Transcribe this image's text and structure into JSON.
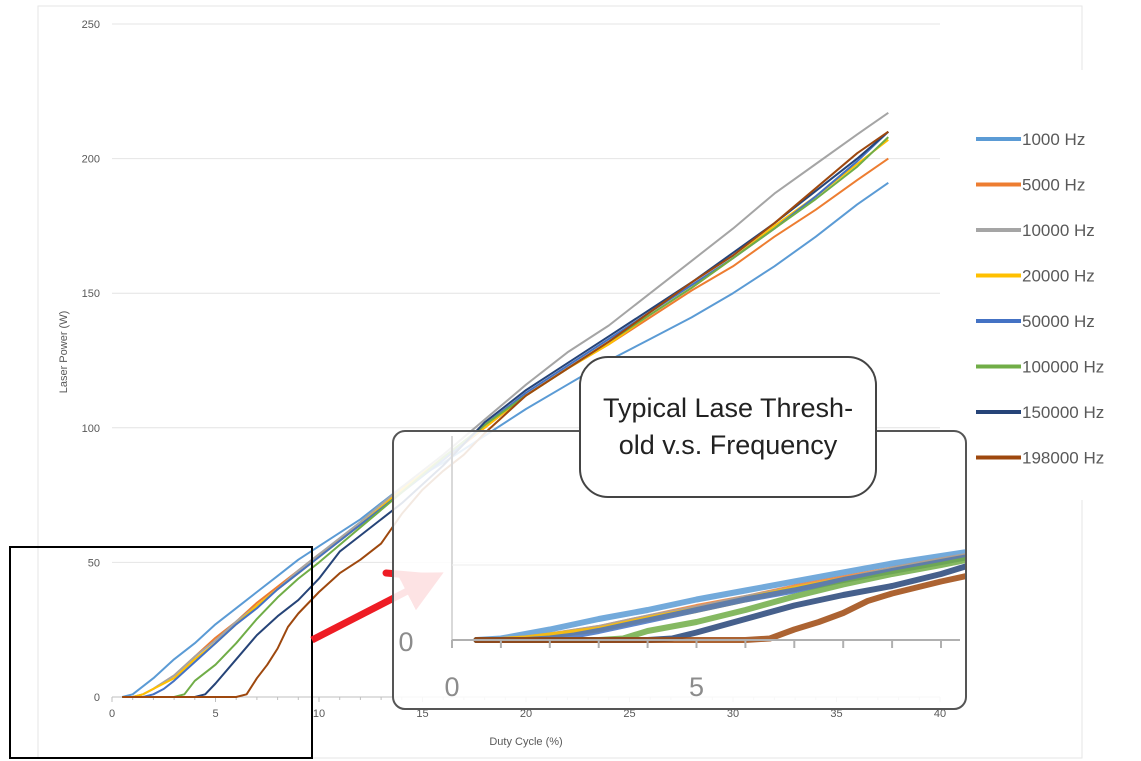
{
  "chart_data": {
    "type": "line",
    "xlabel": "Duty Cycle (%)",
    "ylabel": "Laser Power (W)",
    "xlim": [
      0,
      40
    ],
    "ylim": [
      0,
      250
    ],
    "x_ticks": [
      "0",
      "5",
      "10",
      "15",
      "20",
      "25",
      "30",
      "35",
      "40"
    ],
    "y_ticks": [
      "0",
      "50",
      "100",
      "150",
      "200",
      "250"
    ],
    "grid": "horizontal",
    "legend": "right",
    "series": [
      {
        "name": "1000 Hz",
        "color": "#5B9BD5",
        "points": [
          [
            0.5,
            0
          ],
          [
            1,
            1
          ],
          [
            2,
            7
          ],
          [
            3,
            14
          ],
          [
            4,
            20
          ],
          [
            5,
            27
          ],
          [
            6,
            33
          ],
          [
            7,
            39
          ],
          [
            8,
            45
          ],
          [
            9,
            51
          ],
          [
            10,
            56
          ],
          [
            12,
            66
          ],
          [
            14,
            78
          ],
          [
            16,
            87
          ],
          [
            18,
            97
          ],
          [
            20,
            107
          ],
          [
            22,
            116
          ],
          [
            24,
            125
          ],
          [
            26,
            133
          ],
          [
            28,
            141
          ],
          [
            30,
            150
          ],
          [
            32,
            160
          ],
          [
            34,
            171
          ],
          [
            36,
            183
          ],
          [
            37.5,
            191
          ]
        ]
      },
      {
        "name": "5000 Hz",
        "color": "#ED7D31",
        "points": [
          [
            0.5,
            0
          ],
          [
            1,
            0
          ],
          [
            1.5,
            1
          ],
          [
            2,
            3
          ],
          [
            3,
            8
          ],
          [
            4,
            15
          ],
          [
            5,
            22
          ],
          [
            6,
            28
          ],
          [
            7,
            35
          ],
          [
            8,
            41
          ],
          [
            9,
            47
          ],
          [
            10,
            53
          ],
          [
            12,
            64
          ],
          [
            14,
            77
          ],
          [
            16,
            88
          ],
          [
            18,
            100
          ],
          [
            20,
            112
          ],
          [
            22,
            122
          ],
          [
            24,
            131
          ],
          [
            26,
            141
          ],
          [
            28,
            151
          ],
          [
            30,
            160
          ],
          [
            32,
            171
          ],
          [
            34,
            181
          ],
          [
            36,
            192
          ],
          [
            37.5,
            200
          ]
        ]
      },
      {
        "name": "10000 Hz",
        "color": "#A5A5A5",
        "points": [
          [
            0.5,
            0
          ],
          [
            1,
            0
          ],
          [
            1.5,
            1
          ],
          [
            2,
            3
          ],
          [
            3,
            8
          ],
          [
            4,
            15
          ],
          [
            5,
            21
          ],
          [
            6,
            28
          ],
          [
            7,
            34
          ],
          [
            8,
            40
          ],
          [
            9,
            47
          ],
          [
            10,
            53
          ],
          [
            12,
            65
          ],
          [
            14,
            78
          ],
          [
            16,
            90
          ],
          [
            18,
            103
          ],
          [
            20,
            116
          ],
          [
            22,
            128
          ],
          [
            24,
            138
          ],
          [
            26,
            150
          ],
          [
            28,
            162
          ],
          [
            30,
            174
          ],
          [
            32,
            187
          ],
          [
            34,
            198
          ],
          [
            36,
            209
          ],
          [
            37.5,
            217
          ]
        ]
      },
      {
        "name": "20000 Hz",
        "color": "#FFC000",
        "points": [
          [
            0.5,
            0
          ],
          [
            1,
            0
          ],
          [
            1.5,
            1
          ],
          [
            2,
            3
          ],
          [
            3,
            7
          ],
          [
            4,
            14
          ],
          [
            5,
            20
          ],
          [
            6,
            27
          ],
          [
            7,
            34
          ],
          [
            8,
            40
          ],
          [
            9,
            46
          ],
          [
            10,
            52
          ],
          [
            12,
            64
          ],
          [
            14,
            77
          ],
          [
            16,
            89
          ],
          [
            18,
            100
          ],
          [
            20,
            112
          ],
          [
            22,
            122
          ],
          [
            24,
            131
          ],
          [
            26,
            142
          ],
          [
            28,
            152
          ],
          [
            30,
            163
          ],
          [
            32,
            175
          ],
          [
            34,
            186
          ],
          [
            36,
            198
          ],
          [
            37.5,
            207
          ]
        ]
      },
      {
        "name": "50000 Hz",
        "color": "#4472C4",
        "points": [
          [
            0.5,
            0
          ],
          [
            1,
            0
          ],
          [
            1.5,
            0
          ],
          [
            2,
            1
          ],
          [
            2.5,
            3
          ],
          [
            3,
            6
          ],
          [
            4,
            13
          ],
          [
            5,
            20
          ],
          [
            6,
            27
          ],
          [
            7,
            33
          ],
          [
            8,
            40
          ],
          [
            9,
            46
          ],
          [
            10,
            52
          ],
          [
            12,
            64
          ],
          [
            14,
            76
          ],
          [
            16,
            88
          ],
          [
            18,
            101
          ],
          [
            20,
            113
          ],
          [
            22,
            123
          ],
          [
            24,
            133
          ],
          [
            26,
            143
          ],
          [
            28,
            153
          ],
          [
            30,
            163
          ],
          [
            32,
            174
          ],
          [
            34,
            186
          ],
          [
            36,
            199
          ],
          [
            37.5,
            210
          ]
        ]
      },
      {
        "name": "100000 Hz",
        "color": "#70AD47",
        "points": [
          [
            0.5,
            0
          ],
          [
            1,
            0
          ],
          [
            2,
            0
          ],
          [
            3,
            0
          ],
          [
            3.5,
            1
          ],
          [
            4,
            6
          ],
          [
            5,
            12
          ],
          [
            6,
            20
          ],
          [
            7,
            29
          ],
          [
            8,
            37
          ],
          [
            9,
            44
          ],
          [
            10,
            50
          ],
          [
            12,
            63
          ],
          [
            14,
            76
          ],
          [
            16,
            89
          ],
          [
            18,
            101
          ],
          [
            20,
            112
          ],
          [
            22,
            122
          ],
          [
            24,
            132
          ],
          [
            26,
            142
          ],
          [
            28,
            152
          ],
          [
            30,
            163
          ],
          [
            32,
            174
          ],
          [
            34,
            185
          ],
          [
            36,
            197
          ],
          [
            37.5,
            208
          ]
        ]
      },
      {
        "name": "150000 Hz",
        "color": "#264478",
        "points": [
          [
            0.5,
            0
          ],
          [
            1,
            0
          ],
          [
            2,
            0
          ],
          [
            3,
            0
          ],
          [
            4,
            0
          ],
          [
            4.5,
            1
          ],
          [
            5,
            5
          ],
          [
            6,
            14
          ],
          [
            7,
            23
          ],
          [
            8,
            30
          ],
          [
            9,
            36
          ],
          [
            10,
            44
          ],
          [
            11,
            54
          ],
          [
            12,
            60
          ],
          [
            14,
            72
          ],
          [
            16,
            86
          ],
          [
            18,
            102
          ],
          [
            20,
            114
          ],
          [
            22,
            124
          ],
          [
            24,
            134
          ],
          [
            26,
            144
          ],
          [
            28,
            154
          ],
          [
            30,
            165
          ],
          [
            32,
            176
          ],
          [
            34,
            188
          ],
          [
            36,
            200
          ],
          [
            37.5,
            210
          ]
        ]
      },
      {
        "name": "198000 Hz",
        "color": "#9E480E",
        "points": [
          [
            0.5,
            0
          ],
          [
            1,
            0
          ],
          [
            2,
            0
          ],
          [
            3,
            0
          ],
          [
            4,
            0
          ],
          [
            5,
            0
          ],
          [
            6,
            0
          ],
          [
            6.5,
            1
          ],
          [
            7,
            7
          ],
          [
            7.5,
            12
          ],
          [
            8,
            18
          ],
          [
            8.5,
            26
          ],
          [
            9,
            31
          ],
          [
            10,
            39
          ],
          [
            11,
            46
          ],
          [
            12,
            51
          ],
          [
            13,
            57
          ],
          [
            14,
            68
          ],
          [
            15,
            77
          ],
          [
            16,
            84
          ],
          [
            17,
            90
          ],
          [
            18,
            98
          ],
          [
            20,
            112
          ],
          [
            22,
            122
          ],
          [
            24,
            132
          ],
          [
            26,
            143
          ],
          [
            28,
            154
          ],
          [
            30,
            164
          ],
          [
            32,
            176
          ],
          [
            34,
            189
          ],
          [
            36,
            202
          ],
          [
            37.5,
            210
          ]
        ]
      }
    ],
    "inset": {
      "title": "Typical Lase Thresh- old v.s. Frequency",
      "x_tick_labels": [
        "0",
        "5"
      ],
      "y_tick_label": "0"
    }
  }
}
